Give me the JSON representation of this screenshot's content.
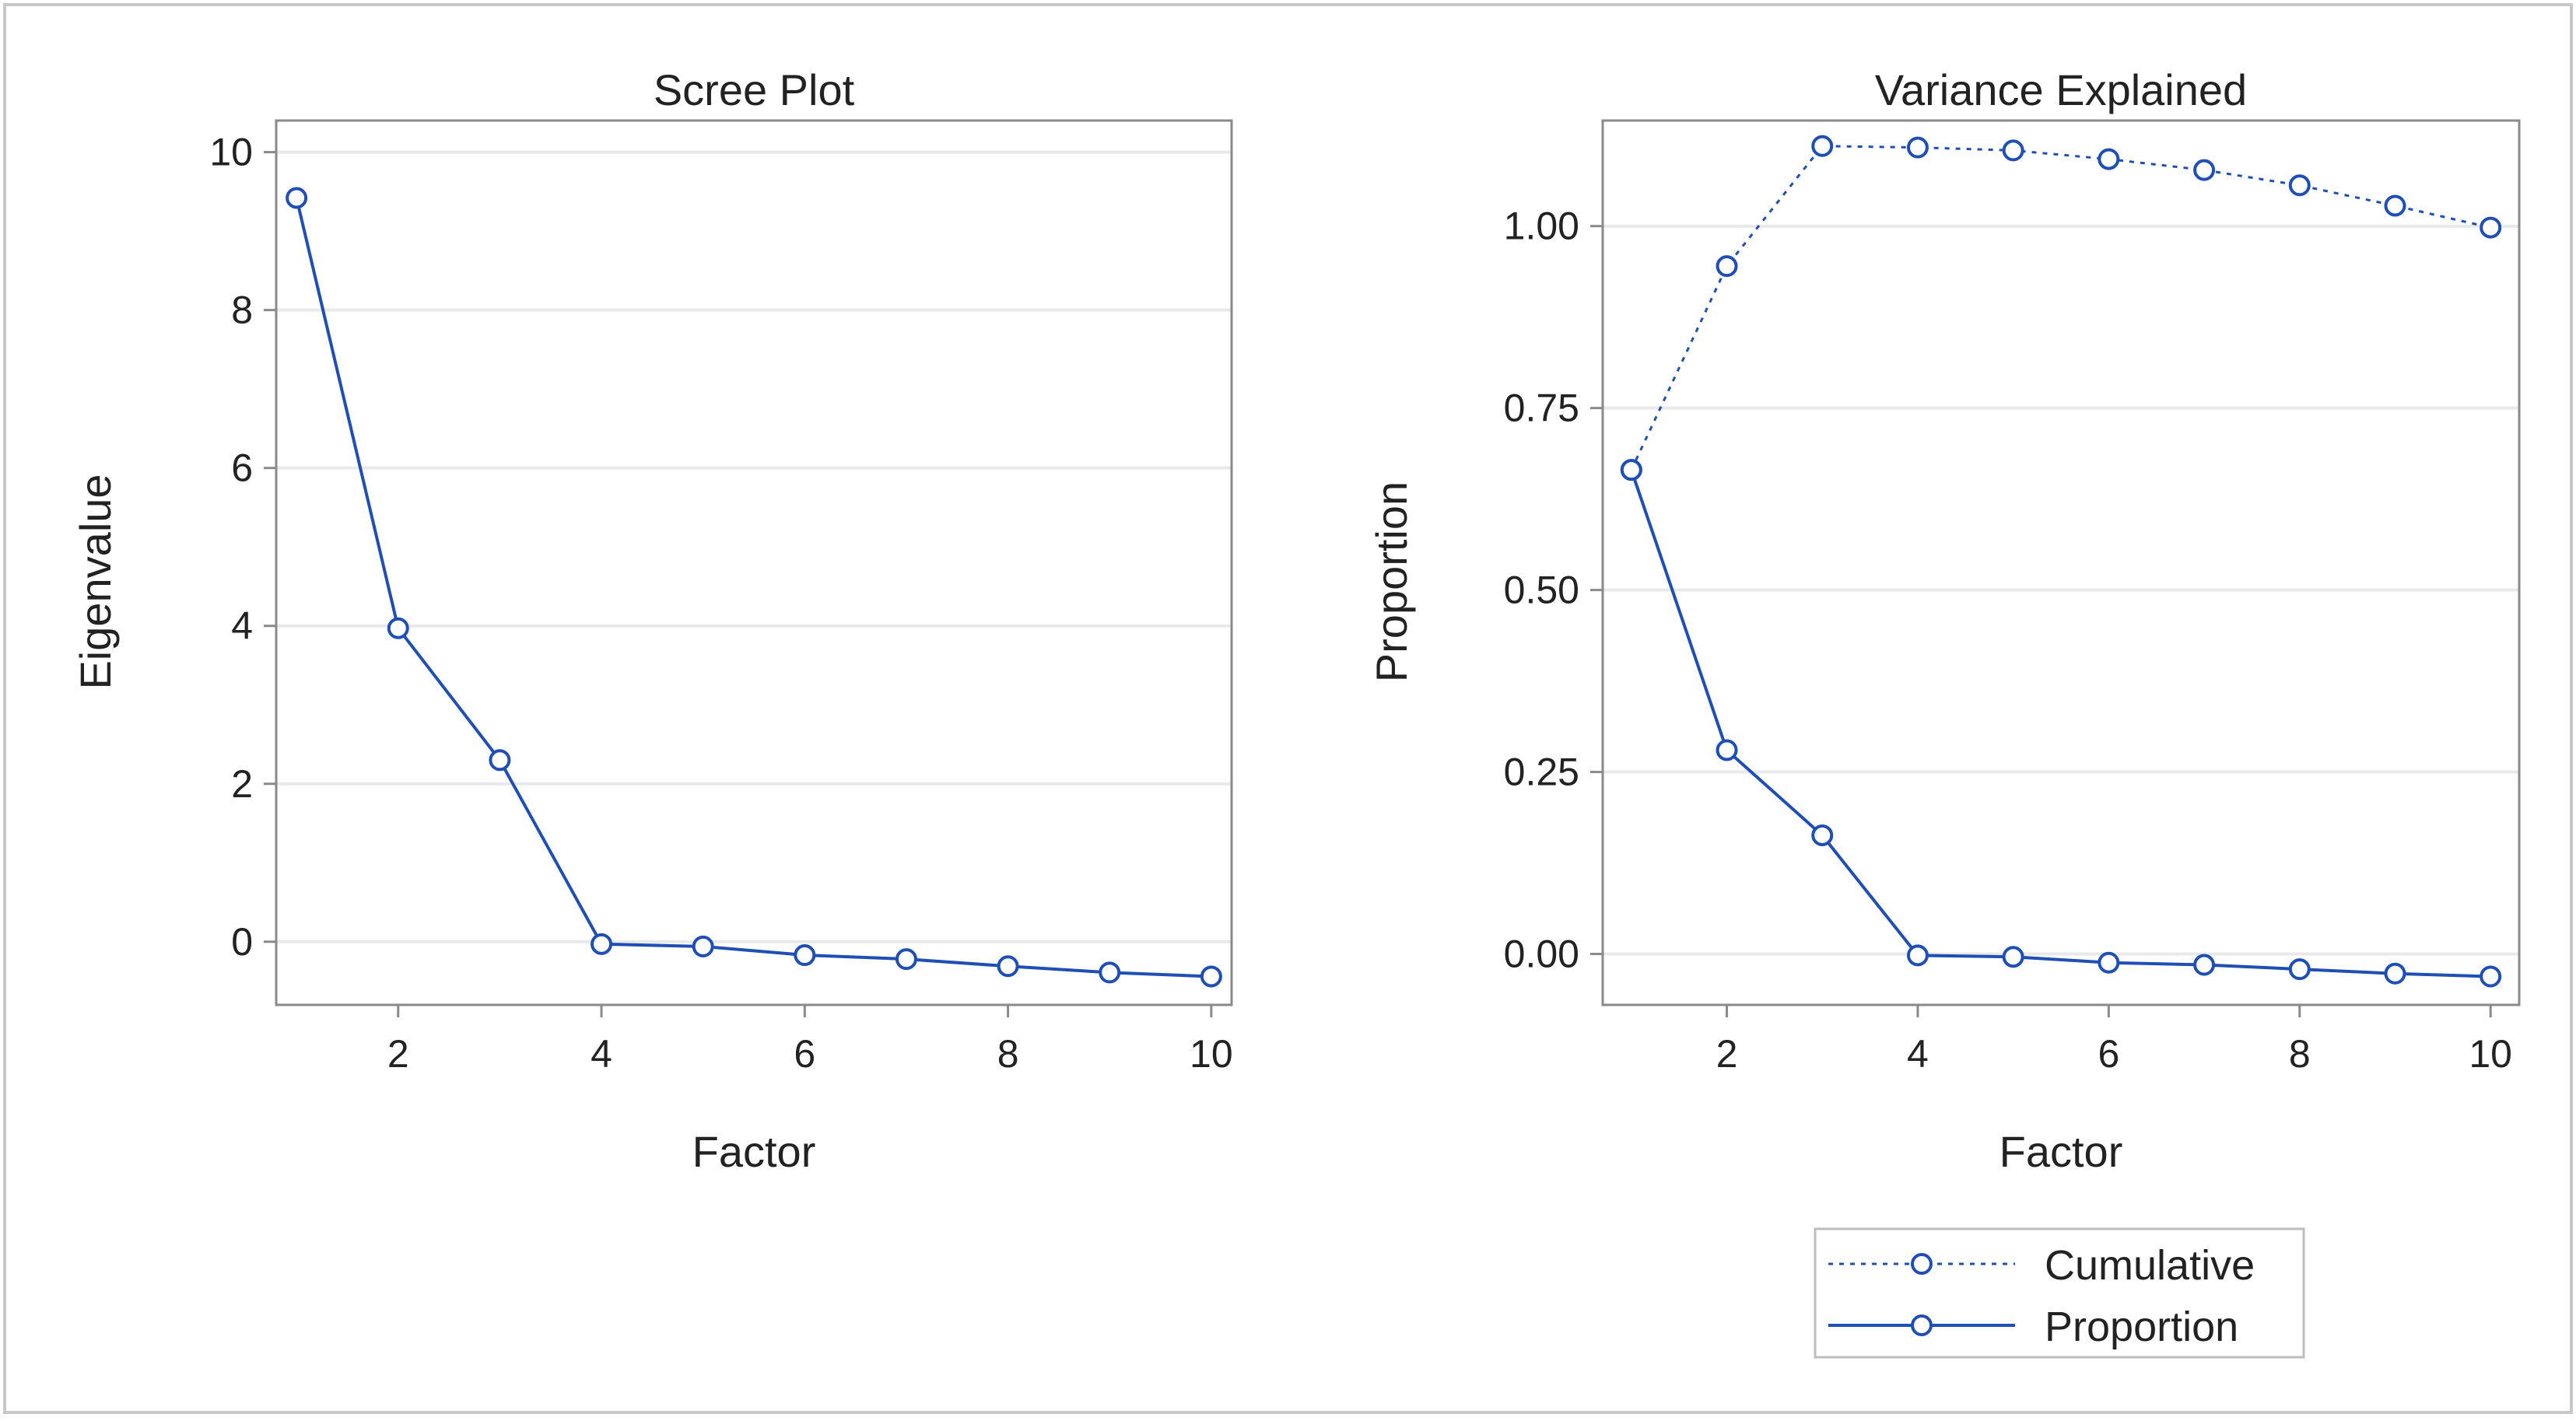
{
  "colors": {
    "series": "#1f4fb4",
    "frame": "#8a8a8a",
    "grid": "#e9e9e9",
    "outer_border": "#c8c8c8",
    "background": "#ffffff"
  },
  "chart_data": [
    {
      "id": "scree",
      "type": "line",
      "title": "Scree Plot",
      "xlabel": "Factor",
      "ylabel": "Eigenvalue",
      "xlim": [
        0.8,
        10.2
      ],
      "ylim": [
        -0.8,
        10.4
      ],
      "xticks": [
        2,
        4,
        6,
        8,
        10
      ],
      "yticks": [
        0,
        2,
        4,
        6,
        8,
        10
      ],
      "ytick_labels": [
        "0",
        "2",
        "4",
        "6",
        "8",
        "10"
      ],
      "grid": true,
      "series": [
        {
          "name": "Eigenvalue",
          "style": "solid",
          "x": [
            1,
            2,
            3,
            4,
            5,
            6,
            7,
            8,
            9,
            10
          ],
          "values": [
            9.42,
            3.97,
            2.3,
            -0.03,
            -0.06,
            -0.17,
            -0.22,
            -0.31,
            -0.39,
            -0.44
          ]
        }
      ]
    },
    {
      "id": "variance",
      "type": "line",
      "title": "Variance Explained",
      "xlabel": "Factor",
      "ylabel": "Proportion",
      "xlim": [
        0.7,
        10.3
      ],
      "ylim": [
        -0.07,
        1.145
      ],
      "xticks": [
        2,
        4,
        6,
        8,
        10
      ],
      "yticks": [
        0,
        0.25,
        0.5,
        0.75,
        1.0
      ],
      "ytick_labels": [
        "0.00",
        "0.25",
        "0.50",
        "0.75",
        "1.00"
      ],
      "grid": true,
      "legend_position": "bottom-right",
      "series": [
        {
          "name": "Cumulative",
          "style": "dotted",
          "x": [
            1,
            2,
            3,
            4,
            5,
            6,
            7,
            8,
            9,
            10
          ],
          "values": [
            0.665,
            0.945,
            1.11,
            1.108,
            1.104,
            1.092,
            1.077,
            1.056,
            1.028,
            0.998
          ]
        },
        {
          "name": "Proportion",
          "style": "solid",
          "x": [
            1,
            2,
            3,
            4,
            5,
            6,
            7,
            8,
            9,
            10
          ],
          "values": [
            0.665,
            0.28,
            0.163,
            -0.002,
            -0.004,
            -0.012,
            -0.015,
            -0.021,
            -0.027,
            -0.031
          ]
        }
      ]
    }
  ]
}
